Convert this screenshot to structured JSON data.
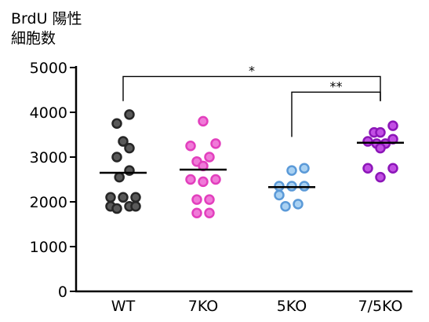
{
  "chart_data": {
    "type": "scatter",
    "ylabel_line1": "BrdU 陽性",
    "ylabel_line2": "細胞数",
    "ylim": [
      0,
      5000
    ],
    "yticks": [
      0,
      1000,
      2000,
      3000,
      4000,
      5000
    ],
    "categories": [
      "WT",
      "7KO",
      "5KO",
      "7/5KO"
    ],
    "series": [
      {
        "category": "WT",
        "fill": "#595959",
        "stroke": "#262626",
        "mean": 2650,
        "points": [
          {
            "offset": 0.5,
            "y": 3950
          },
          {
            "offset": -0.5,
            "y": 3750
          },
          {
            "offset": 0.0,
            "y": 3350
          },
          {
            "offset": 0.5,
            "y": 3200
          },
          {
            "offset": -0.5,
            "y": 3000
          },
          {
            "offset": -0.3,
            "y": 2550
          },
          {
            "offset": 0.5,
            "y": 2700
          },
          {
            "offset": -1.0,
            "y": 2100
          },
          {
            "offset": 0.0,
            "y": 2100
          },
          {
            "offset": 1.0,
            "y": 2100
          },
          {
            "offset": -1.0,
            "y": 1900
          },
          {
            "offset": -0.5,
            "y": 1850
          },
          {
            "offset": 0.5,
            "y": 1900
          },
          {
            "offset": 1.0,
            "y": 1900
          }
        ]
      },
      {
        "category": "7KO",
        "fill": "#f07ad8",
        "stroke": "#e23fbd",
        "mean": 2720,
        "points": [
          {
            "offset": 0.0,
            "y": 3800
          },
          {
            "offset": -1.0,
            "y": 3250
          },
          {
            "offset": 1.0,
            "y": 3300
          },
          {
            "offset": 0.5,
            "y": 3000
          },
          {
            "offset": -0.5,
            "y": 2900
          },
          {
            "offset": 0.0,
            "y": 2800
          },
          {
            "offset": -1.0,
            "y": 2500
          },
          {
            "offset": 0.0,
            "y": 2450
          },
          {
            "offset": 1.0,
            "y": 2500
          },
          {
            "offset": -0.5,
            "y": 2050
          },
          {
            "offset": 0.5,
            "y": 2050
          },
          {
            "offset": -0.5,
            "y": 1750
          },
          {
            "offset": 0.5,
            "y": 1750
          }
        ]
      },
      {
        "category": "5KO",
        "fill": "#a9d1f2",
        "stroke": "#5b9ad8",
        "mean": 2330,
        "points": [
          {
            "offset": 0.0,
            "y": 2700
          },
          {
            "offset": 1.0,
            "y": 2750
          },
          {
            "offset": -1.0,
            "y": 2350
          },
          {
            "offset": 0.0,
            "y": 2350
          },
          {
            "offset": 1.0,
            "y": 2350
          },
          {
            "offset": -1.0,
            "y": 2150
          },
          {
            "offset": -0.5,
            "y": 1900
          },
          {
            "offset": 0.5,
            "y": 1950
          }
        ]
      },
      {
        "category": "7/5KO",
        "fill": "#c24fe4",
        "stroke": "#8c16b8",
        "mean": 3320,
        "points": [
          {
            "offset": 1.0,
            "y": 3700
          },
          {
            "offset": -0.5,
            "y": 3550
          },
          {
            "offset": 0.0,
            "y": 3550
          },
          {
            "offset": 1.0,
            "y": 3400
          },
          {
            "offset": -1.0,
            "y": 3350
          },
          {
            "offset": -0.3,
            "y": 3300
          },
          {
            "offset": 0.4,
            "y": 3300
          },
          {
            "offset": 0.0,
            "y": 3200
          },
          {
            "offset": -1.0,
            "y": 2750
          },
          {
            "offset": 1.0,
            "y": 2750
          },
          {
            "offset": 0.0,
            "y": 2550
          }
        ]
      }
    ],
    "significance": [
      {
        "from": "WT",
        "to": "7/5KO",
        "label": "*",
        "y": 4800
      },
      {
        "from": "5KO",
        "to": "7/5KO",
        "label": "**",
        "y": 4450
      }
    ]
  }
}
